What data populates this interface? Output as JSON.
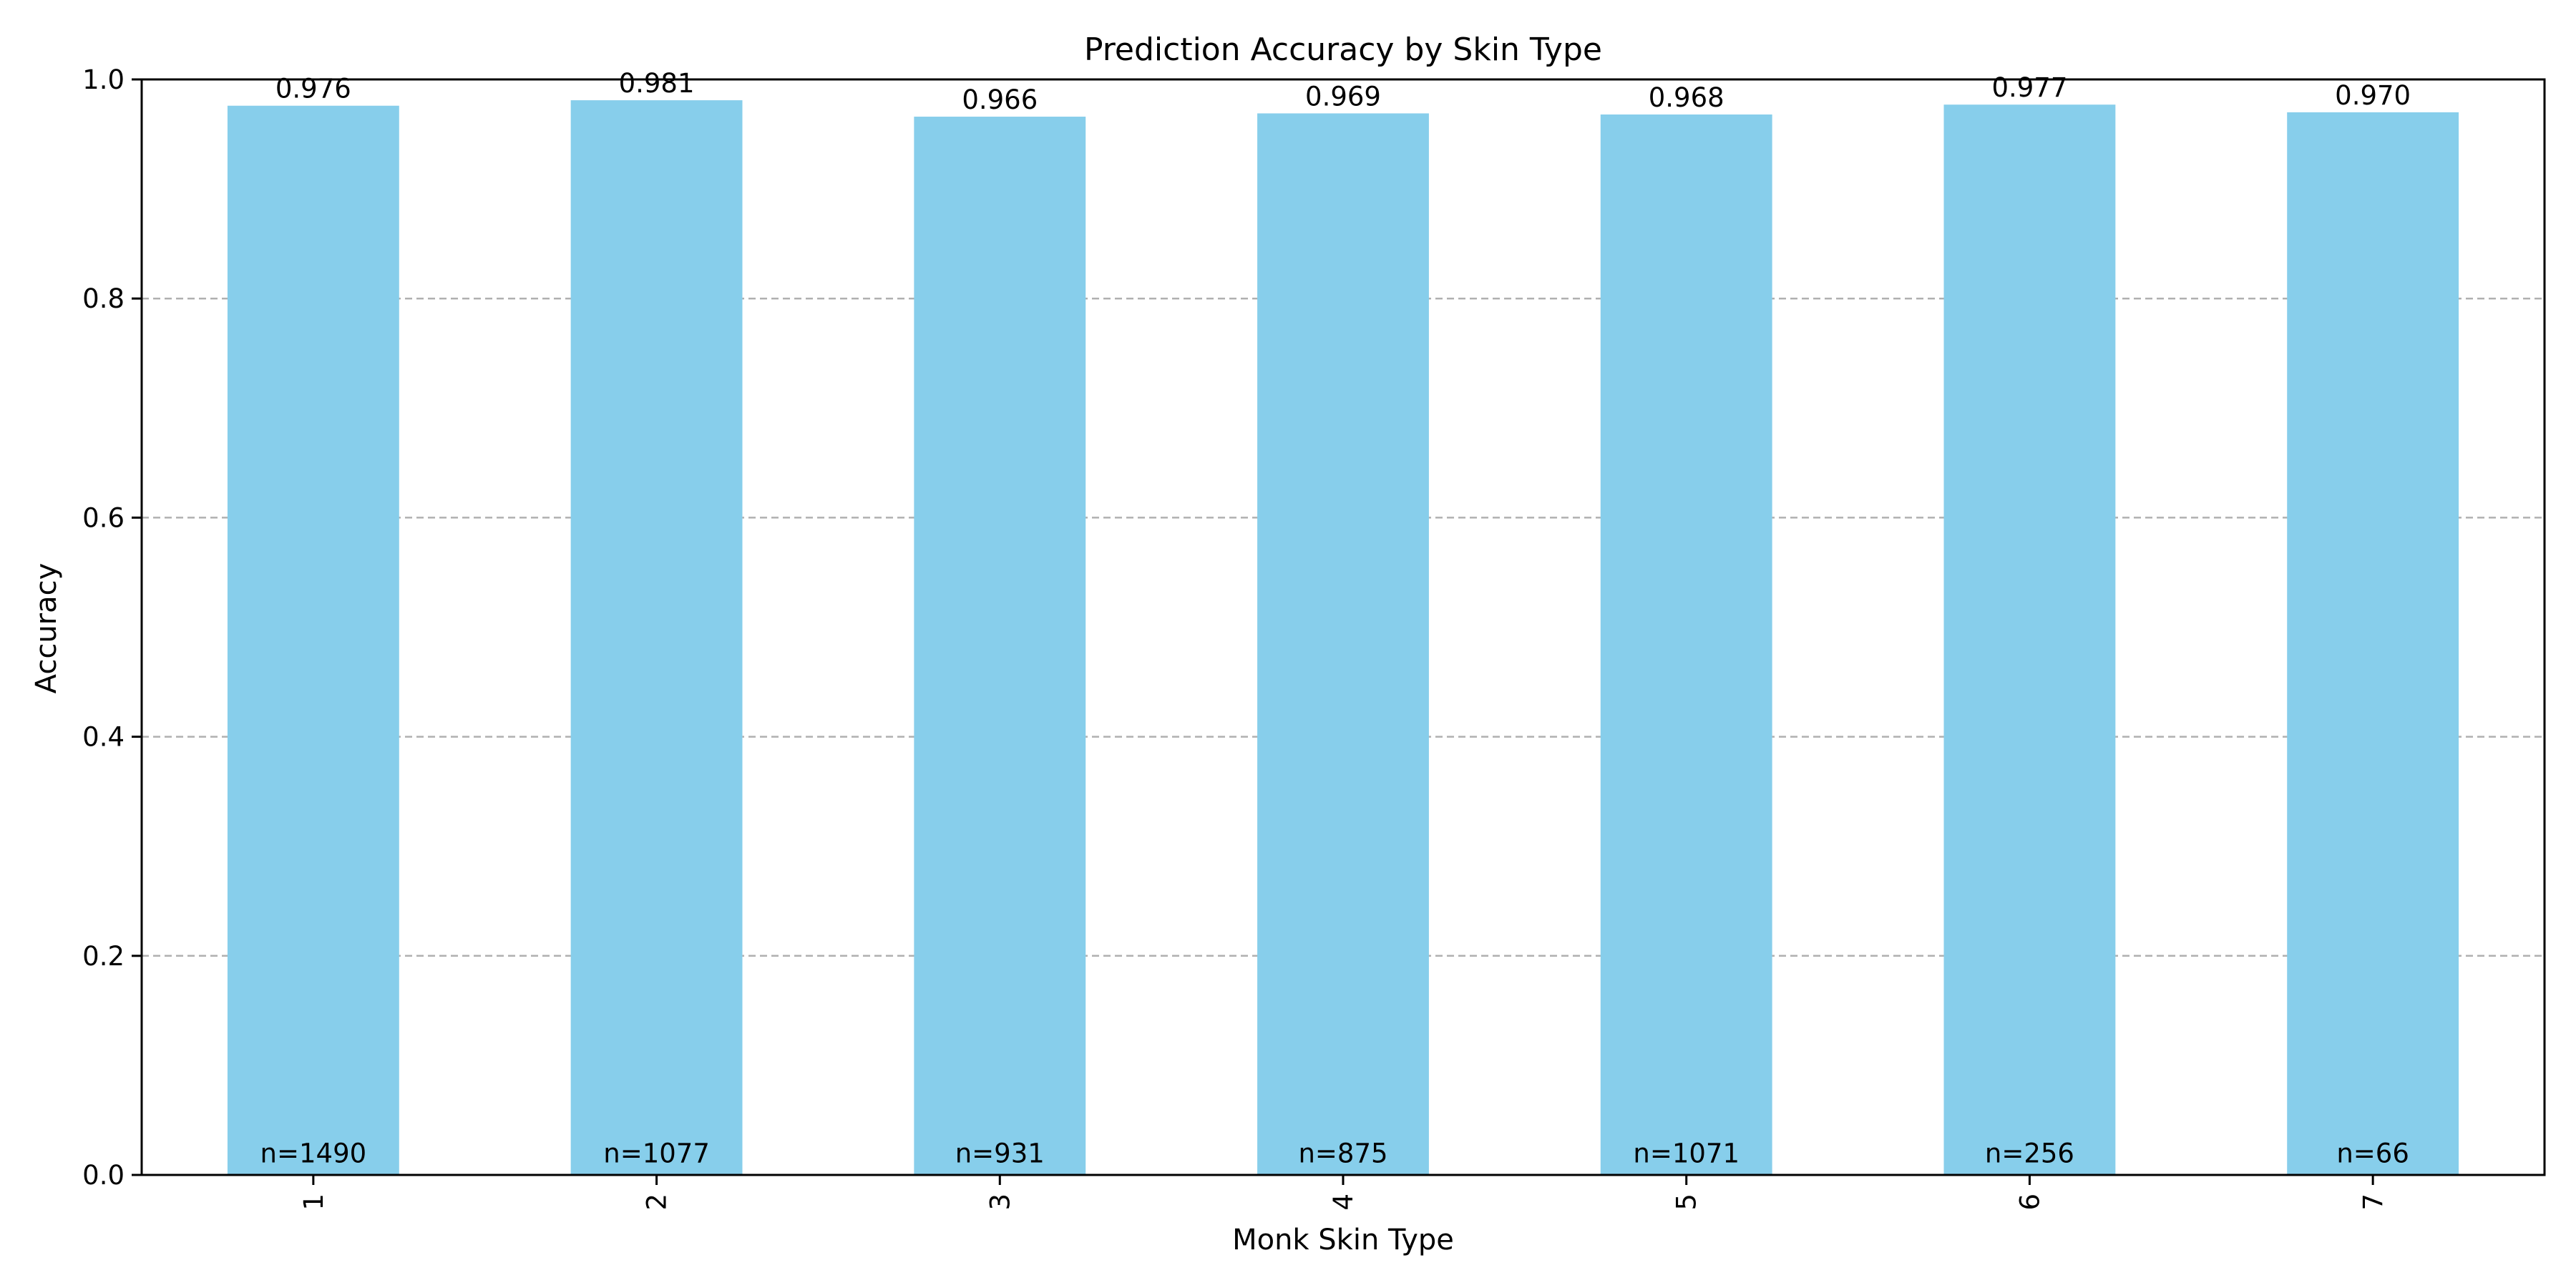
{
  "chart_data": {
    "type": "bar",
    "title": "Prediction Accuracy by Skin Type",
    "xlabel": "Monk Skin Type",
    "ylabel": "Accuracy",
    "categories": [
      "1",
      "2",
      "3",
      "4",
      "5",
      "6",
      "7"
    ],
    "values": [
      0.976,
      0.981,
      0.966,
      0.969,
      0.968,
      0.977,
      0.97
    ],
    "value_labels": [
      "0.976",
      "0.981",
      "0.966",
      "0.969",
      "0.968",
      "0.977",
      "0.970"
    ],
    "count_labels": [
      "n=1490",
      "n=1077",
      "n=931",
      "n=875",
      "n=1071",
      "n=256",
      "n=66"
    ],
    "ylim": [
      0,
      1.0
    ],
    "yticks": [
      "0.0",
      "0.2",
      "0.4",
      "0.6",
      "0.8",
      "1.0"
    ],
    "ytick_values": [
      0,
      0.2,
      0.4,
      0.6,
      0.8,
      1.0
    ],
    "grid": "y-dashed",
    "bar_color": "#87CEEB",
    "grid_color": "#b0b0b0"
  }
}
